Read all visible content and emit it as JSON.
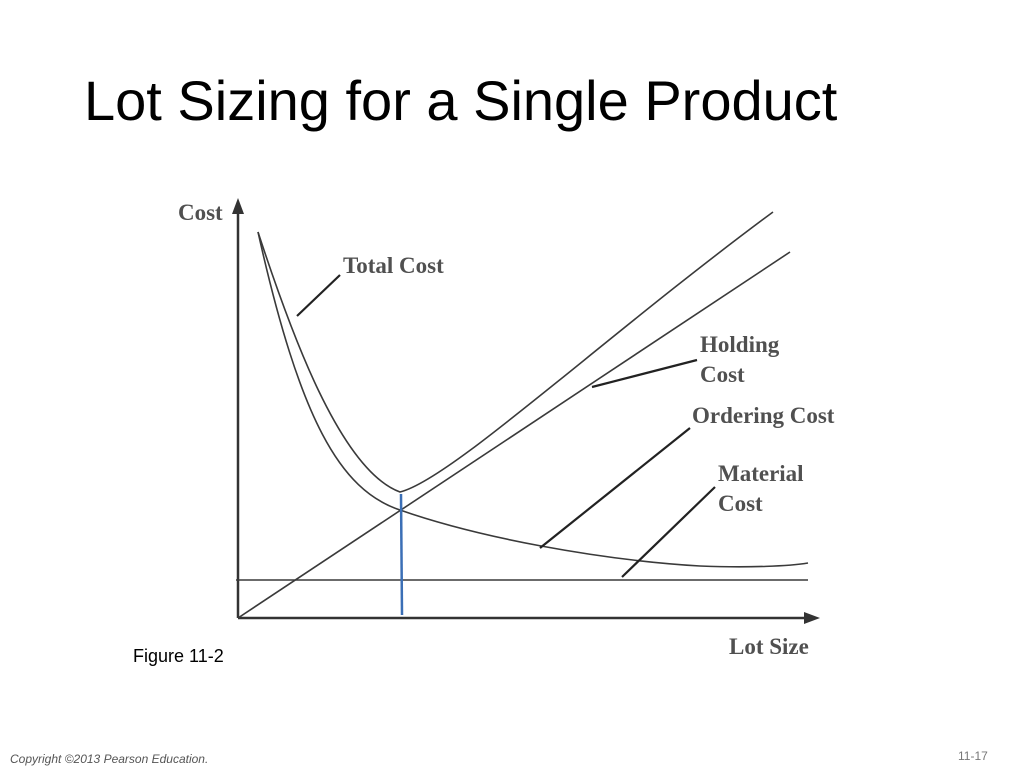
{
  "header": {
    "title": "Lot Sizing for a Single Product"
  },
  "figure": {
    "y_axis_label": "Cost",
    "x_axis_label": "Lot Size",
    "curves": {
      "total_cost": "Total Cost",
      "holding_cost": [
        "Holding",
        "Cost"
      ],
      "ordering_cost": "Ordering Cost",
      "material_cost": [
        "Material",
        "Cost"
      ]
    },
    "caption": "Figure 11-2"
  },
  "footer": {
    "copyright": "Copyright ©2013 Pearson Education.",
    "slide_number": "11-17"
  }
}
